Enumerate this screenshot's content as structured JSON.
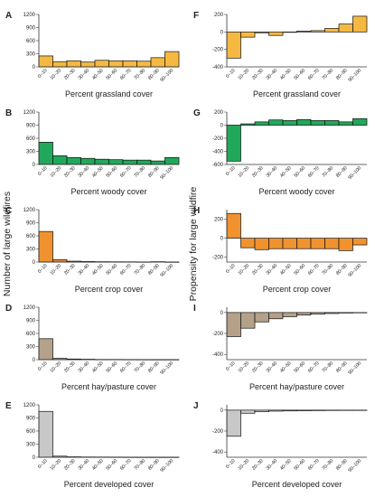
{
  "figure": {
    "left_ylabel": "Number of large wildfires",
    "right_ylabel": "Propensity for large wildfire"
  },
  "chart_data": [
    {
      "id": "A",
      "type": "bar",
      "color": "#f5b942",
      "xlabel": "Percent grassland cover",
      "ylabel": "Number of large wildfires",
      "categories": [
        "0–10",
        "10–20",
        "20–30",
        "30–40",
        "40–50",
        "50–60",
        "60–70",
        "70–80",
        "80–90",
        "90–100"
      ],
      "values": [
        250,
        120,
        140,
        110,
        150,
        140,
        140,
        130,
        210,
        350
      ],
      "yticks": [
        0,
        300,
        600,
        900,
        1200
      ],
      "ylim": [
        0,
        1200
      ]
    },
    {
      "id": "B",
      "type": "bar",
      "color": "#22a85a",
      "xlabel": "Percent woody cover",
      "ylabel": "Number of large wildfires",
      "categories": [
        "0–10",
        "10–20",
        "20–30",
        "30–40",
        "40–50",
        "50–60",
        "60–70",
        "70–80",
        "80–90",
        "90–100"
      ],
      "values": [
        510,
        200,
        160,
        140,
        120,
        110,
        100,
        100,
        80,
        160
      ],
      "yticks": [
        0,
        300,
        600,
        900,
        1200
      ],
      "ylim": [
        0,
        1200
      ]
    },
    {
      "id": "C",
      "type": "bar",
      "color": "#f0922e",
      "xlabel": "Percent crop cover",
      "ylabel": "Number of large wildfires",
      "categories": [
        "0–10",
        "10–20",
        "20–30",
        "30–40",
        "40–50",
        "50–60",
        "60–70",
        "70–80",
        "80–90",
        "90–100"
      ],
      "values": [
        700,
        55,
        20,
        12,
        8,
        6,
        5,
        3,
        8,
        2
      ],
      "yticks": [
        0,
        300,
        600,
        900,
        1200
      ],
      "ylim": [
        0,
        1200
      ]
    },
    {
      "id": "D",
      "type": "bar",
      "color": "#b5a08a",
      "xlabel": "Percent hay/pasture cover",
      "ylabel": "Number of large wildfires",
      "categories": [
        "0–10",
        "10–20",
        "20–30",
        "30–40",
        "40–50",
        "50–60",
        "60–70",
        "70–80",
        "80–90",
        "90–100"
      ],
      "values": [
        480,
        30,
        15,
        10,
        5,
        5,
        4,
        3,
        2,
        2
      ],
      "yticks": [
        0,
        300,
        600,
        900,
        1200
      ],
      "ylim": [
        0,
        1200
      ]
    },
    {
      "id": "E",
      "type": "bar",
      "color": "#c8c8c8",
      "xlabel": "Percent developed cover",
      "ylabel": "Number of large wildfires",
      "categories": [
        "0–10",
        "10–20",
        "20–30",
        "30–40",
        "40–50",
        "50–60",
        "60–70",
        "70–80",
        "80–90",
        "90–100"
      ],
      "values": [
        1050,
        25,
        10,
        6,
        5,
        4,
        3,
        2,
        2,
        2
      ],
      "yticks": [
        0,
        300,
        600,
        900,
        1200
      ],
      "ylim": [
        0,
        1200
      ]
    },
    {
      "id": "F",
      "type": "bar",
      "color": "#f5b942",
      "xlabel": "Percent grassland cover",
      "ylabel": "Propensity for large wildfire",
      "categories": [
        "0–10",
        "10–20",
        "20–30",
        "30–40",
        "40–50",
        "50–60",
        "60–70",
        "70–80",
        "80–90",
        "90–100"
      ],
      "values": [
        -300,
        -60,
        -10,
        -40,
        -5,
        10,
        15,
        40,
        90,
        180
      ],
      "yticks": [
        -400,
        -200,
        0,
        200
      ],
      "ylim": [
        -400,
        200
      ]
    },
    {
      "id": "G",
      "type": "bar",
      "color": "#22a85a",
      "xlabel": "Percent woody cover",
      "ylabel": "Propensity for large wildfire",
      "categories": [
        "0–10",
        "10–20",
        "20–30",
        "30–40",
        "40–50",
        "50–60",
        "60–70",
        "70–80",
        "80–90",
        "90–100"
      ],
      "values": [
        -550,
        20,
        50,
        80,
        70,
        85,
        70,
        70,
        50,
        100
      ],
      "yticks": [
        -600,
        -400,
        -200,
        0,
        200
      ],
      "ylim": [
        -600,
        200
      ]
    },
    {
      "id": "H",
      "type": "bar",
      "color": "#f0922e",
      "xlabel": "Percent crop cover",
      "ylabel": "Propensity for large wildfire",
      "categories": [
        "0–10",
        "10–20",
        "20–30",
        "30–40",
        "40–50",
        "50–60",
        "60–70",
        "70–80",
        "80–90",
        "90–100"
      ],
      "values": [
        260,
        -100,
        -120,
        -110,
        -110,
        -110,
        -110,
        -110,
        -130,
        -70
      ],
      "yticks": [
        -200,
        0,
        200
      ],
      "ylim": [
        -250,
        300
      ]
    },
    {
      "id": "I",
      "type": "bar",
      "color": "#b5a08a",
      "xlabel": "Percent hay/pasture cover",
      "ylabel": "Propensity for large wildfire",
      "categories": [
        "0–10",
        "10–20",
        "20–30",
        "30–40",
        "40–50",
        "50–60",
        "60–70",
        "70–80",
        "80–90",
        "90–100"
      ],
      "values": [
        -230,
        -150,
        -90,
        -60,
        -40,
        -25,
        -15,
        -10,
        -5,
        -3
      ],
      "yticks": [
        -400,
        -200,
        0
      ],
      "ylim": [
        -450,
        50
      ]
    },
    {
      "id": "J",
      "type": "bar",
      "color": "#c8c8c8",
      "xlabel": "Percent developed cover",
      "ylabel": "Propensity for large wildfire",
      "categories": [
        "0–10",
        "10–20",
        "20–30",
        "30–40",
        "40–50",
        "50–60",
        "60–70",
        "70–80",
        "80–90",
        "90–100"
      ],
      "values": [
        -250,
        -30,
        -15,
        -10,
        -8,
        -6,
        -5,
        -4,
        -3,
        -2
      ],
      "yticks": [
        -400,
        -200,
        0
      ],
      "ylim": [
        -450,
        50
      ]
    }
  ]
}
